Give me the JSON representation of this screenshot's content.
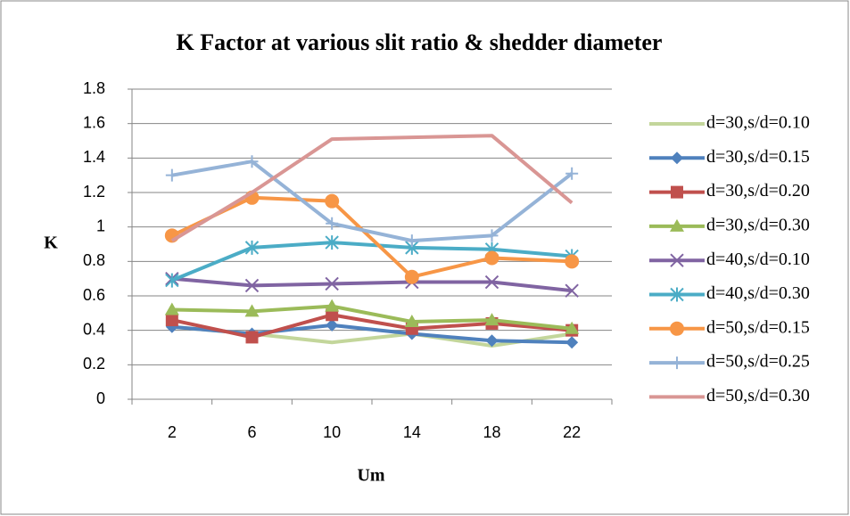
{
  "chart_data": {
    "type": "line",
    "title": "K Factor at various slit ratio & shedder diameter",
    "x_label": "Um",
    "y_label": "K",
    "categories": [
      "2",
      "6",
      "10",
      "14",
      "18",
      "22"
    ],
    "ylim": [
      0,
      1.8
    ],
    "yticks": [
      0,
      0.2,
      0.4,
      0.6,
      0.8,
      1,
      1.2,
      1.4,
      1.6,
      1.8
    ],
    "grid": true,
    "legend": "right",
    "series": [
      {
        "name": "d=30,s/d=0.10",
        "color": "#c3d69b",
        "marker": "none",
        "values": [
          0.42,
          0.38,
          0.33,
          0.38,
          0.31,
          0.38
        ]
      },
      {
        "name": "d=30,s/d=0.15",
        "color": "#4f81bd",
        "marker": "diamond",
        "values": [
          0.42,
          0.38,
          0.43,
          0.38,
          0.34,
          0.33
        ]
      },
      {
        "name": "d=30,s/d=0.20",
        "color": "#c0504d",
        "marker": "square",
        "values": [
          0.46,
          0.36,
          0.49,
          0.41,
          0.44,
          0.4
        ]
      },
      {
        "name": "d=30,s/d=0.30",
        "color": "#9bbb59",
        "marker": "triangle",
        "values": [
          0.52,
          0.51,
          0.54,
          0.45,
          0.46,
          0.41
        ]
      },
      {
        "name": "d=40,s/d=0.10",
        "color": "#8064a2",
        "marker": "x",
        "values": [
          0.7,
          0.66,
          0.67,
          0.68,
          0.68,
          0.63
        ]
      },
      {
        "name": "d=40,s/d=0.30",
        "color": "#4bacc6",
        "marker": "star",
        "values": [
          0.69,
          0.88,
          0.91,
          0.88,
          0.87,
          0.83
        ]
      },
      {
        "name": "d=50,s/d=0.15",
        "color": "#f79646",
        "marker": "circle",
        "values": [
          0.95,
          1.17,
          1.15,
          0.71,
          0.82,
          0.8
        ]
      },
      {
        "name": "d=50,s/d=0.25",
        "color": "#95b3d7",
        "marker": "plus",
        "values": [
          1.3,
          1.38,
          1.02,
          0.92,
          0.95,
          1.31
        ]
      },
      {
        "name": "d=50,s/d=0.30",
        "color": "#d99694",
        "marker": "none",
        "values": [
          0.92,
          1.2,
          1.51,
          1.52,
          1.53,
          1.14
        ]
      }
    ]
  }
}
